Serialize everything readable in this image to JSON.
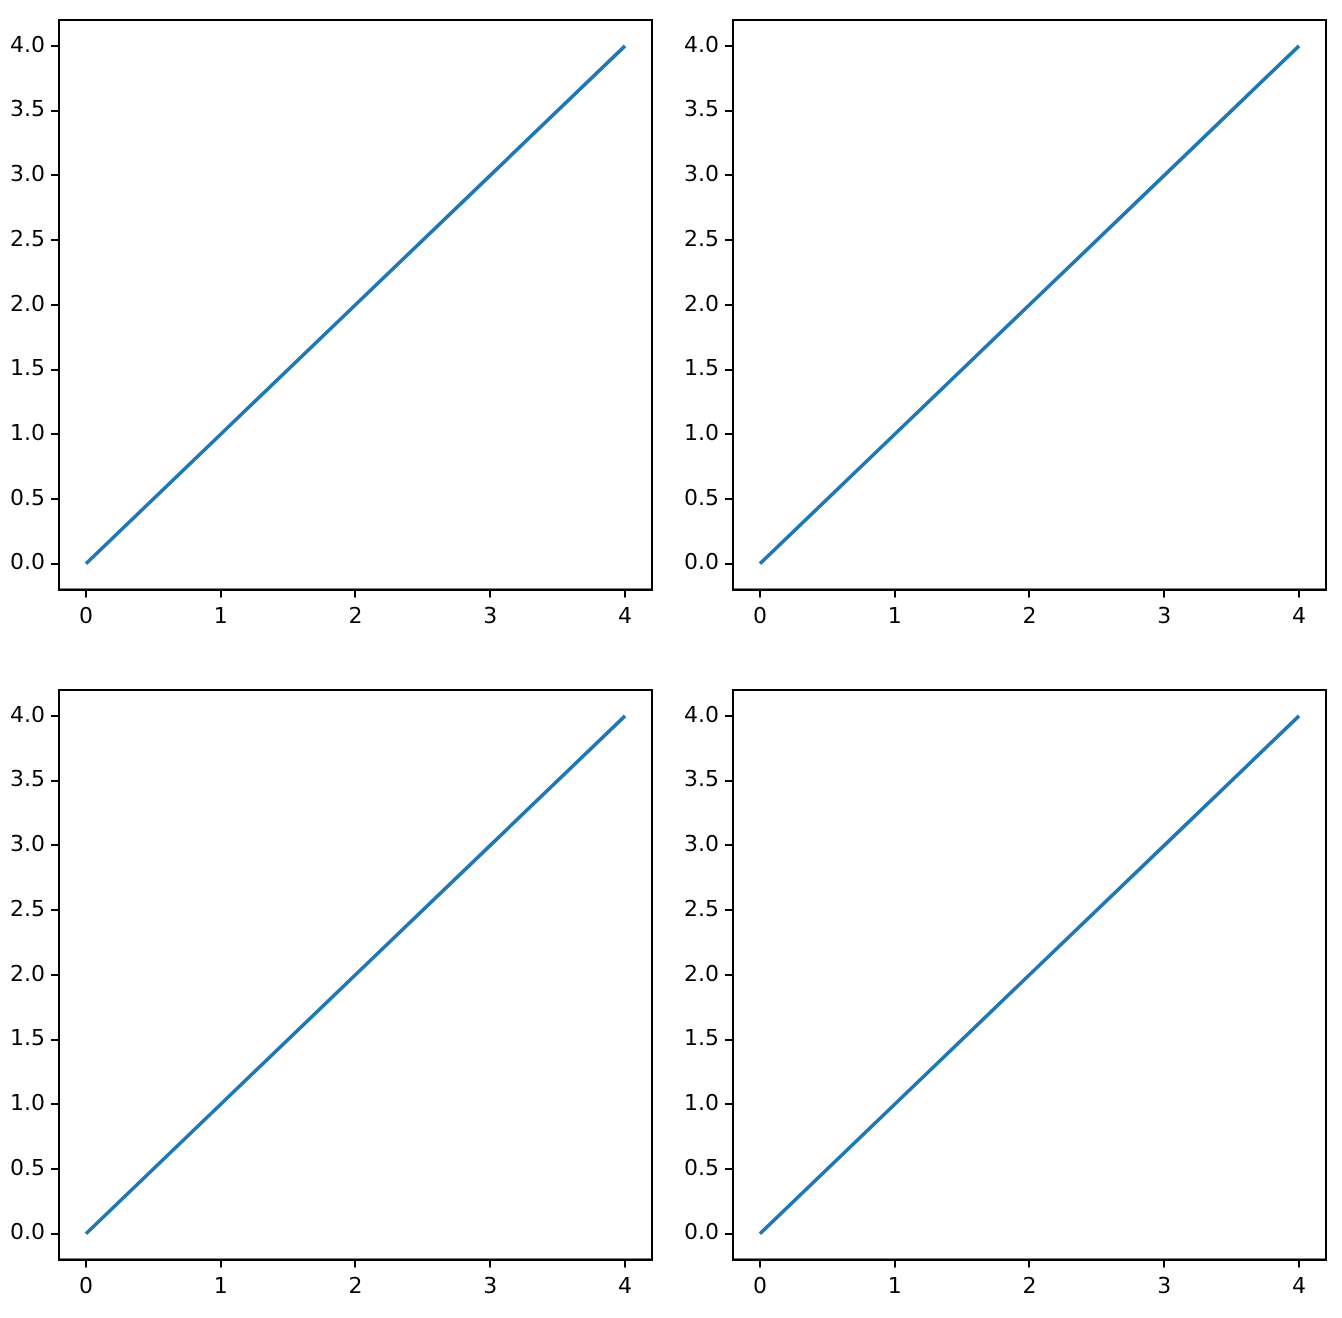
{
  "chart_data": [
    {
      "type": "line",
      "x": [
        0,
        1,
        2,
        3,
        4
      ],
      "series": [
        {
          "color": "#1f77b4",
          "values": [
            0,
            1,
            2,
            3,
            4
          ]
        }
      ],
      "xlim": [
        -0.2,
        4.2
      ],
      "ylim": [
        -0.2,
        4.2
      ],
      "xticks": [
        0,
        1,
        2,
        3,
        4
      ],
      "yticks": [
        {
          "value": 0,
          "label": "0.0"
        },
        {
          "value": 0.5,
          "label": "0.5"
        },
        {
          "value": 1,
          "label": "1.0"
        },
        {
          "value": 1.5,
          "label": "1.5"
        },
        {
          "value": 2,
          "label": "2.0"
        },
        {
          "value": 2.5,
          "label": "2.5"
        },
        {
          "value": 3,
          "label": "3.0"
        },
        {
          "value": 3.5,
          "label": "3.5"
        },
        {
          "value": 4,
          "label": "4.0"
        }
      ],
      "marker": "none",
      "grid": false,
      "legend": false
    },
    {
      "type": "line",
      "x": [
        0,
        1,
        2,
        3,
        4
      ],
      "series": [
        {
          "color": "#1f77b4",
          "values": [
            0,
            1,
            2,
            3,
            4
          ]
        }
      ],
      "xlim": [
        -0.2,
        4.2
      ],
      "ylim": [
        -0.2,
        4.2
      ],
      "xticks": [
        0,
        1,
        2,
        3,
        4
      ],
      "yticks": [
        {
          "value": 0,
          "label": "0.0"
        },
        {
          "value": 0.5,
          "label": "0.5"
        },
        {
          "value": 1,
          "label": "1.0"
        },
        {
          "value": 1.5,
          "label": "1.5"
        },
        {
          "value": 2,
          "label": "2.0"
        },
        {
          "value": 2.5,
          "label": "2.5"
        },
        {
          "value": 3,
          "label": "3.0"
        },
        {
          "value": 3.5,
          "label": "3.5"
        },
        {
          "value": 4,
          "label": "4.0"
        }
      ],
      "marker": "none",
      "grid": false,
      "legend": false
    },
    {
      "type": "line",
      "x": [
        0,
        1,
        2,
        3,
        4
      ],
      "series": [
        {
          "color": "#1f77b4",
          "values": [
            0,
            1,
            2,
            3,
            4
          ]
        }
      ],
      "xlim": [
        -0.2,
        4.2
      ],
      "ylim": [
        -0.2,
        4.2
      ],
      "xticks": [
        0,
        1,
        2,
        3,
        4
      ],
      "yticks": [
        {
          "value": 0,
          "label": "0.0"
        },
        {
          "value": 0.5,
          "label": "0.5"
        },
        {
          "value": 1,
          "label": "1.0"
        },
        {
          "value": 1.5,
          "label": "1.5"
        },
        {
          "value": 2,
          "label": "2.0"
        },
        {
          "value": 2.5,
          "label": "2.5"
        },
        {
          "value": 3,
          "label": "3.0"
        },
        {
          "value": 3.5,
          "label": "3.5"
        },
        {
          "value": 4,
          "label": "4.0"
        }
      ],
      "marker": "none",
      "grid": false,
      "legend": false
    },
    {
      "type": "line",
      "x": [
        0,
        1,
        2,
        3,
        4
      ],
      "series": [
        {
          "color": "#1f77b4",
          "values": [
            0,
            1,
            2,
            3,
            4
          ]
        }
      ],
      "xlim": [
        -0.2,
        4.2
      ],
      "ylim": [
        -0.2,
        4.2
      ],
      "xticks": [
        0,
        1,
        2,
        3,
        4
      ],
      "yticks": [
        {
          "value": 0,
          "label": "0.0"
        },
        {
          "value": 0.5,
          "label": "0.5"
        },
        {
          "value": 1,
          "label": "1.0"
        },
        {
          "value": 1.5,
          "label": "1.5"
        },
        {
          "value": 2,
          "label": "2.0"
        },
        {
          "value": 2.5,
          "label": "2.5"
        },
        {
          "value": 3,
          "label": "3.0"
        },
        {
          "value": 3.5,
          "label": "3.5"
        },
        {
          "value": 4,
          "label": "4.0"
        }
      ],
      "marker": "none",
      "grid": false,
      "legend": false
    }
  ]
}
